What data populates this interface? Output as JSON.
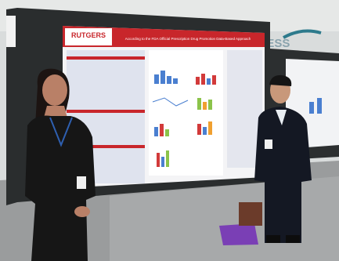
{
  "poster": {
    "logo": "RUTGERS",
    "title": "According to the FDA Official Prescription Drug Promotion Data-Based Approach"
  },
  "background": {
    "banner": "PRESS"
  }
}
